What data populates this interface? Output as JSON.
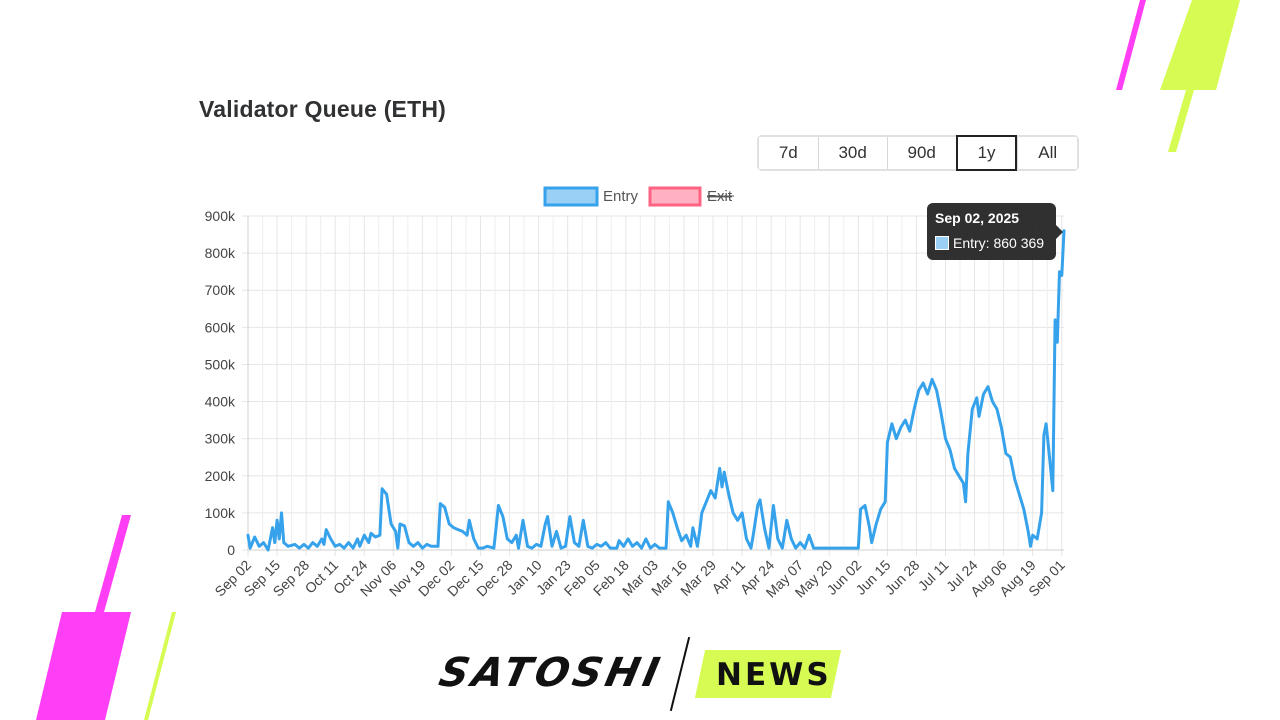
{
  "title": "Validator Queue (ETH)",
  "range_buttons": [
    {
      "label": "7d",
      "active": false
    },
    {
      "label": "30d",
      "active": false
    },
    {
      "label": "90d",
      "active": false
    },
    {
      "label": "1y",
      "active": true
    },
    {
      "label": "All",
      "active": false
    }
  ],
  "tooltip": {
    "title": "Sep 02, 2025",
    "label": "Entry: 860 369"
  },
  "brand": {
    "left": "SATOSHI",
    "right": "NEWS"
  },
  "colors": {
    "entry_line": "#36a2eb",
    "entry_fill": "#9ad0f5",
    "exit_line": "#ff6384",
    "exit_fill": "#ffb1c1",
    "brand_magenta": "#ff3ef5",
    "brand_lime": "#d6fb52"
  },
  "chart_data": {
    "type": "line",
    "title": "",
    "xlabel": "",
    "ylabel": "",
    "ylim": [
      0,
      900000
    ],
    "y_ticks": [
      "0",
      "100k",
      "200k",
      "300k",
      "400k",
      "500k",
      "600k",
      "700k",
      "800k",
      "900k"
    ],
    "x_tick_labels": [
      "Sep 02",
      "Sep 15",
      "Sep 28",
      "Oct 11",
      "Oct 24",
      "Nov 06",
      "Nov 19",
      "Dec 02",
      "Dec 15",
      "Dec 28",
      "Jan 10",
      "Jan 23",
      "Feb 05",
      "Feb 18",
      "Mar 03",
      "Mar 16",
      "Mar 29",
      "Apr 11",
      "Apr 24",
      "May 07",
      "May 20",
      "Jun 02",
      "Jun 15",
      "Jun 28",
      "Jul 11",
      "Jul 24",
      "Aug 06",
      "Aug 19",
      "Sep 01"
    ],
    "x_range": [
      "2024-09-02",
      "2025-09-02"
    ],
    "grid": true,
    "legend_position": "top",
    "series": [
      {
        "name": "Entry",
        "hidden": false,
        "points": [
          [
            "2024-09-02",
            40000
          ],
          [
            "2024-09-03",
            5000
          ],
          [
            "2024-09-05",
            35000
          ],
          [
            "2024-09-07",
            10000
          ],
          [
            "2024-09-09",
            20000
          ],
          [
            "2024-09-11",
            0
          ],
          [
            "2024-09-13",
            60000
          ],
          [
            "2024-09-14",
            20000
          ],
          [
            "2024-09-15",
            80000
          ],
          [
            "2024-09-16",
            30000
          ],
          [
            "2024-09-17",
            100000
          ],
          [
            "2024-09-18",
            20000
          ],
          [
            "2024-09-20",
            10000
          ],
          [
            "2024-09-23",
            15000
          ],
          [
            "2024-09-25",
            5000
          ],
          [
            "2024-09-27",
            15000
          ],
          [
            "2024-09-29",
            5000
          ],
          [
            "2024-10-01",
            20000
          ],
          [
            "2024-10-03",
            10000
          ],
          [
            "2024-10-05",
            30000
          ],
          [
            "2024-10-06",
            15000
          ],
          [
            "2024-10-07",
            55000
          ],
          [
            "2024-10-09",
            30000
          ],
          [
            "2024-10-11",
            10000
          ],
          [
            "2024-10-13",
            15000
          ],
          [
            "2024-10-15",
            5000
          ],
          [
            "2024-10-17",
            20000
          ],
          [
            "2024-10-19",
            5000
          ],
          [
            "2024-10-21",
            30000
          ],
          [
            "2024-10-22",
            10000
          ],
          [
            "2024-10-24",
            40000
          ],
          [
            "2024-10-26",
            20000
          ],
          [
            "2024-10-27",
            45000
          ],
          [
            "2024-10-29",
            35000
          ],
          [
            "2024-10-31",
            40000
          ],
          [
            "2024-11-01",
            165000
          ],
          [
            "2024-11-03",
            150000
          ],
          [
            "2024-11-05",
            70000
          ],
          [
            "2024-11-07",
            50000
          ],
          [
            "2024-11-08",
            5000
          ],
          [
            "2024-11-09",
            70000
          ],
          [
            "2024-11-11",
            65000
          ],
          [
            "2024-11-13",
            20000
          ],
          [
            "2024-11-15",
            10000
          ],
          [
            "2024-11-17",
            20000
          ],
          [
            "2024-11-19",
            5000
          ],
          [
            "2024-11-21",
            15000
          ],
          [
            "2024-11-23",
            10000
          ],
          [
            "2024-11-26",
            10000
          ],
          [
            "2024-11-27",
            125000
          ],
          [
            "2024-11-29",
            115000
          ],
          [
            "2024-12-01",
            70000
          ],
          [
            "2024-12-03",
            60000
          ],
          [
            "2024-12-05",
            55000
          ],
          [
            "2024-12-07",
            50000
          ],
          [
            "2024-12-09",
            40000
          ],
          [
            "2024-12-10",
            80000
          ],
          [
            "2024-12-12",
            30000
          ],
          [
            "2024-12-14",
            5000
          ],
          [
            "2024-12-16",
            5000
          ],
          [
            "2024-12-18",
            10000
          ],
          [
            "2024-12-21",
            5000
          ],
          [
            "2024-12-23",
            120000
          ],
          [
            "2024-12-25",
            90000
          ],
          [
            "2024-12-27",
            30000
          ],
          [
            "2024-12-29",
            20000
          ],
          [
            "2024-12-31",
            40000
          ],
          [
            "2025-01-01",
            5000
          ],
          [
            "2025-01-03",
            80000
          ],
          [
            "2025-01-05",
            10000
          ],
          [
            "2025-01-07",
            5000
          ],
          [
            "2025-01-09",
            15000
          ],
          [
            "2025-01-11",
            10000
          ],
          [
            "2025-01-13",
            70000
          ],
          [
            "2025-01-14",
            90000
          ],
          [
            "2025-01-16",
            10000
          ],
          [
            "2025-01-18",
            50000
          ],
          [
            "2025-01-20",
            5000
          ],
          [
            "2025-01-22",
            10000
          ],
          [
            "2025-01-24",
            90000
          ],
          [
            "2025-01-26",
            20000
          ],
          [
            "2025-01-28",
            10000
          ],
          [
            "2025-01-30",
            80000
          ],
          [
            "2025-02-01",
            10000
          ],
          [
            "2025-02-03",
            5000
          ],
          [
            "2025-02-05",
            15000
          ],
          [
            "2025-02-07",
            10000
          ],
          [
            "2025-02-09",
            20000
          ],
          [
            "2025-02-11",
            5000
          ],
          [
            "2025-02-14",
            5000
          ],
          [
            "2025-02-15",
            25000
          ],
          [
            "2025-02-17",
            10000
          ],
          [
            "2025-02-19",
            30000
          ],
          [
            "2025-02-21",
            10000
          ],
          [
            "2025-02-23",
            20000
          ],
          [
            "2025-02-25",
            5000
          ],
          [
            "2025-02-27",
            30000
          ],
          [
            "2025-03-01",
            5000
          ],
          [
            "2025-03-03",
            15000
          ],
          [
            "2025-03-05",
            5000
          ],
          [
            "2025-03-08",
            5000
          ],
          [
            "2025-03-09",
            130000
          ],
          [
            "2025-03-11",
            100000
          ],
          [
            "2025-03-13",
            60000
          ],
          [
            "2025-03-15",
            25000
          ],
          [
            "2025-03-17",
            40000
          ],
          [
            "2025-03-19",
            10000
          ],
          [
            "2025-03-20",
            60000
          ],
          [
            "2025-03-22",
            10000
          ],
          [
            "2025-03-23",
            50000
          ],
          [
            "2025-03-24",
            100000
          ],
          [
            "2025-03-26",
            130000
          ],
          [
            "2025-03-28",
            160000
          ],
          [
            "2025-03-30",
            140000
          ],
          [
            "2025-04-01",
            220000
          ],
          [
            "2025-04-02",
            170000
          ],
          [
            "2025-04-03",
            210000
          ],
          [
            "2025-04-05",
            150000
          ],
          [
            "2025-04-07",
            100000
          ],
          [
            "2025-04-09",
            80000
          ],
          [
            "2025-04-11",
            100000
          ],
          [
            "2025-04-13",
            30000
          ],
          [
            "2025-04-15",
            5000
          ],
          [
            "2025-04-16",
            40000
          ],
          [
            "2025-04-18",
            120000
          ],
          [
            "2025-04-19",
            135000
          ],
          [
            "2025-04-21",
            60000
          ],
          [
            "2025-04-23",
            5000
          ],
          [
            "2025-04-25",
            120000
          ],
          [
            "2025-04-27",
            30000
          ],
          [
            "2025-04-29",
            5000
          ],
          [
            "2025-05-01",
            80000
          ],
          [
            "2025-05-03",
            30000
          ],
          [
            "2025-05-05",
            5000
          ],
          [
            "2025-05-07",
            20000
          ],
          [
            "2025-05-09",
            5000
          ],
          [
            "2025-05-11",
            40000
          ],
          [
            "2025-05-13",
            5000
          ],
          [
            "2025-05-15",
            5000
          ],
          [
            "2025-05-18",
            5000
          ],
          [
            "2025-05-22",
            5000
          ],
          [
            "2025-05-26",
            5000
          ],
          [
            "2025-05-30",
            5000
          ],
          [
            "2025-06-02",
            5000
          ],
          [
            "2025-06-03",
            110000
          ],
          [
            "2025-06-05",
            120000
          ],
          [
            "2025-06-07",
            60000
          ],
          [
            "2025-06-08",
            20000
          ],
          [
            "2025-06-10",
            70000
          ],
          [
            "2025-06-12",
            110000
          ],
          [
            "2025-06-14",
            130000
          ],
          [
            "2025-06-15",
            290000
          ],
          [
            "2025-06-17",
            340000
          ],
          [
            "2025-06-19",
            300000
          ],
          [
            "2025-06-21",
            330000
          ],
          [
            "2025-06-23",
            350000
          ],
          [
            "2025-06-25",
            320000
          ],
          [
            "2025-06-27",
            380000
          ],
          [
            "2025-06-29",
            430000
          ],
          [
            "2025-07-01",
            450000
          ],
          [
            "2025-07-03",
            420000
          ],
          [
            "2025-07-05",
            460000
          ],
          [
            "2025-07-07",
            430000
          ],
          [
            "2025-07-09",
            370000
          ],
          [
            "2025-07-11",
            300000
          ],
          [
            "2025-07-13",
            270000
          ],
          [
            "2025-07-15",
            220000
          ],
          [
            "2025-07-17",
            200000
          ],
          [
            "2025-07-19",
            180000
          ],
          [
            "2025-07-20",
            130000
          ],
          [
            "2025-07-21",
            260000
          ],
          [
            "2025-07-23",
            380000
          ],
          [
            "2025-07-25",
            410000
          ],
          [
            "2025-07-26",
            360000
          ],
          [
            "2025-07-28",
            420000
          ],
          [
            "2025-07-30",
            440000
          ],
          [
            "2025-08-01",
            400000
          ],
          [
            "2025-08-03",
            380000
          ],
          [
            "2025-08-05",
            330000
          ],
          [
            "2025-08-07",
            260000
          ],
          [
            "2025-08-09",
            250000
          ],
          [
            "2025-08-11",
            190000
          ],
          [
            "2025-08-13",
            150000
          ],
          [
            "2025-08-15",
            110000
          ],
          [
            "2025-08-17",
            50000
          ],
          [
            "2025-08-18",
            10000
          ],
          [
            "2025-08-19",
            40000
          ],
          [
            "2025-08-21",
            30000
          ],
          [
            "2025-08-23",
            100000
          ],
          [
            "2025-08-24",
            310000
          ],
          [
            "2025-08-25",
            340000
          ],
          [
            "2025-08-26",
            280000
          ],
          [
            "2025-08-27",
            220000
          ],
          [
            "2025-08-28",
            160000
          ],
          [
            "2025-08-29",
            620000
          ],
          [
            "2025-08-30",
            560000
          ],
          [
            "2025-08-31",
            750000
          ],
          [
            "2025-09-01",
            740000
          ],
          [
            "2025-09-02",
            860369
          ]
        ]
      },
      {
        "name": "Exit",
        "hidden": true,
        "points": []
      }
    ]
  }
}
